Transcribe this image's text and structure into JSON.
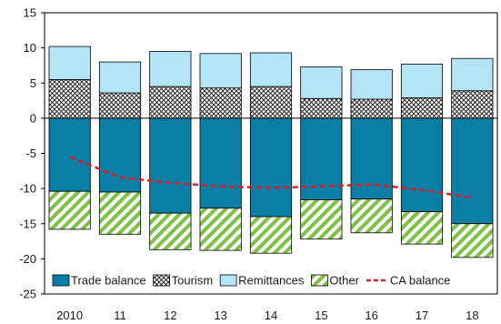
{
  "chart_data": {
    "type": "bar",
    "stacked": true,
    "categories": [
      "2010",
      "11",
      "12",
      "13",
      "14",
      "15",
      "16",
      "17",
      "18"
    ],
    "ylim": [
      -25,
      15
    ],
    "yticks": [
      15,
      10,
      5,
      0,
      -5,
      -10,
      -15,
      -20,
      -25
    ],
    "grid": false,
    "legend_position": "bottom-inside",
    "series": [
      {
        "name": "Trade balance",
        "kind": "bar",
        "pattern": "solid",
        "color": "#0a7fa6",
        "values": [
          -10.4,
          -10.5,
          -13.5,
          -12.8,
          -14.0,
          -11.6,
          -11.5,
          -13.3,
          -15.0
        ]
      },
      {
        "name": "Tourism",
        "kind": "bar",
        "pattern": "crosshatch",
        "color": "#333333",
        "values": [
          5.5,
          3.6,
          4.5,
          4.3,
          4.5,
          2.8,
          2.7,
          2.9,
          3.9
        ]
      },
      {
        "name": "Remittances",
        "kind": "bar",
        "pattern": "solid",
        "color": "#b3e5f7",
        "values": [
          4.7,
          4.4,
          5.0,
          4.9,
          4.8,
          4.5,
          4.2,
          4.8,
          4.6
        ]
      },
      {
        "name": "Other",
        "kind": "bar",
        "pattern": "green-diagonal",
        "color": "#7cc243",
        "values": [
          -5.4,
          -6.0,
          -5.2,
          -6.0,
          -5.2,
          -5.6,
          -4.8,
          -4.6,
          -4.8
        ]
      },
      {
        "name": "CA balance",
        "kind": "line",
        "style": "dashed",
        "color": "#d9202a",
        "values": [
          -5.5,
          -8.4,
          -9.2,
          -9.7,
          -9.9,
          -9.7,
          -9.4,
          -10.2,
          -11.3
        ]
      }
    ]
  }
}
